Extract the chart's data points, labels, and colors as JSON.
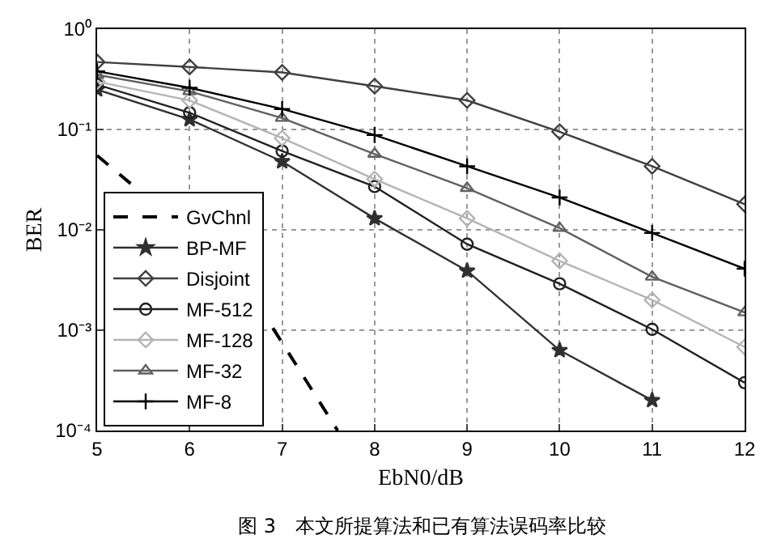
{
  "chart_data": {
    "type": "line",
    "xlabel": "EbN0/dB",
    "ylabel": "BER",
    "annotations": [
      "图 3　本文所提算法和已有算法误码率比较"
    ],
    "log": "y",
    "grid": true,
    "legend": "bottom left",
    "xlim": [
      5,
      12
    ],
    "xticks": [
      5,
      6,
      7,
      8,
      9,
      10,
      11,
      12
    ],
    "ylim": [
      0.0001,
      1
    ],
    "yticks": [
      {
        "value": 0.0001,
        "label": "10⁻⁴"
      },
      {
        "value": 0.001,
        "label": "10⁻³"
      },
      {
        "value": 0.01,
        "label": "10⁻²"
      },
      {
        "value": 0.1,
        "label": "10⁻¹"
      },
      {
        "value": 1,
        "label": "10⁰"
      }
    ],
    "series": [
      {
        "name": "GvChnl",
        "color": "#000000",
        "marker": "none",
        "line_style": "dashed",
        "x": [
          5,
          5.4,
          6.4,
          6.9,
          7.6
        ],
        "values": [
          0.055,
          0.027,
          null,
          0.00105,
          0.0001
        ]
      },
      {
        "name": "BP-MF",
        "color": "#303030",
        "marker": "star",
        "line_style": "solid",
        "x": [
          5,
          6,
          7,
          8,
          9,
          10,
          11
        ],
        "values": [
          0.25,
          0.126,
          0.048,
          0.013,
          0.0039,
          0.00063,
          0.0002
        ]
      },
      {
        "name": "Disjoint",
        "color": "#404040",
        "marker": "diamond",
        "line_style": "solid",
        "x": [
          5,
          6,
          7,
          8,
          9,
          10,
          11,
          12
        ],
        "values": [
          0.47,
          0.42,
          0.37,
          0.27,
          0.195,
          0.095,
          0.043,
          0.018
        ]
      },
      {
        "name": "MF-512",
        "color": "#202020",
        "marker": "circle",
        "line_style": "solid",
        "x": [
          5,
          6,
          7,
          8,
          9,
          10,
          11,
          12
        ],
        "values": [
          0.28,
          0.147,
          0.061,
          0.027,
          0.0072,
          0.0029,
          0.00102,
          0.0003
        ]
      },
      {
        "name": "MF-128",
        "color": "#b4b4b4",
        "marker": "diamond",
        "line_style": "solid",
        "x": [
          5,
          6,
          7,
          8,
          9,
          10,
          11,
          12
        ],
        "values": [
          0.3,
          0.195,
          0.082,
          0.032,
          0.013,
          0.0049,
          0.002,
          0.00068
        ]
      },
      {
        "name": "MF-32",
        "color": "#606060",
        "marker": "triangle",
        "line_style": "solid",
        "x": [
          5,
          6,
          7,
          8,
          9,
          10,
          11,
          12
        ],
        "values": [
          0.35,
          0.24,
          0.13,
          0.057,
          0.026,
          0.0104,
          0.0034,
          0.0015
        ]
      },
      {
        "name": "MF-8",
        "color": "#000000",
        "marker": "cross",
        "line_style": "solid",
        "x": [
          5,
          6,
          7,
          8,
          9,
          10,
          11,
          12
        ],
        "values": [
          0.38,
          0.26,
          0.16,
          0.088,
          0.043,
          0.021,
          0.0093,
          0.0041
        ]
      }
    ]
  }
}
